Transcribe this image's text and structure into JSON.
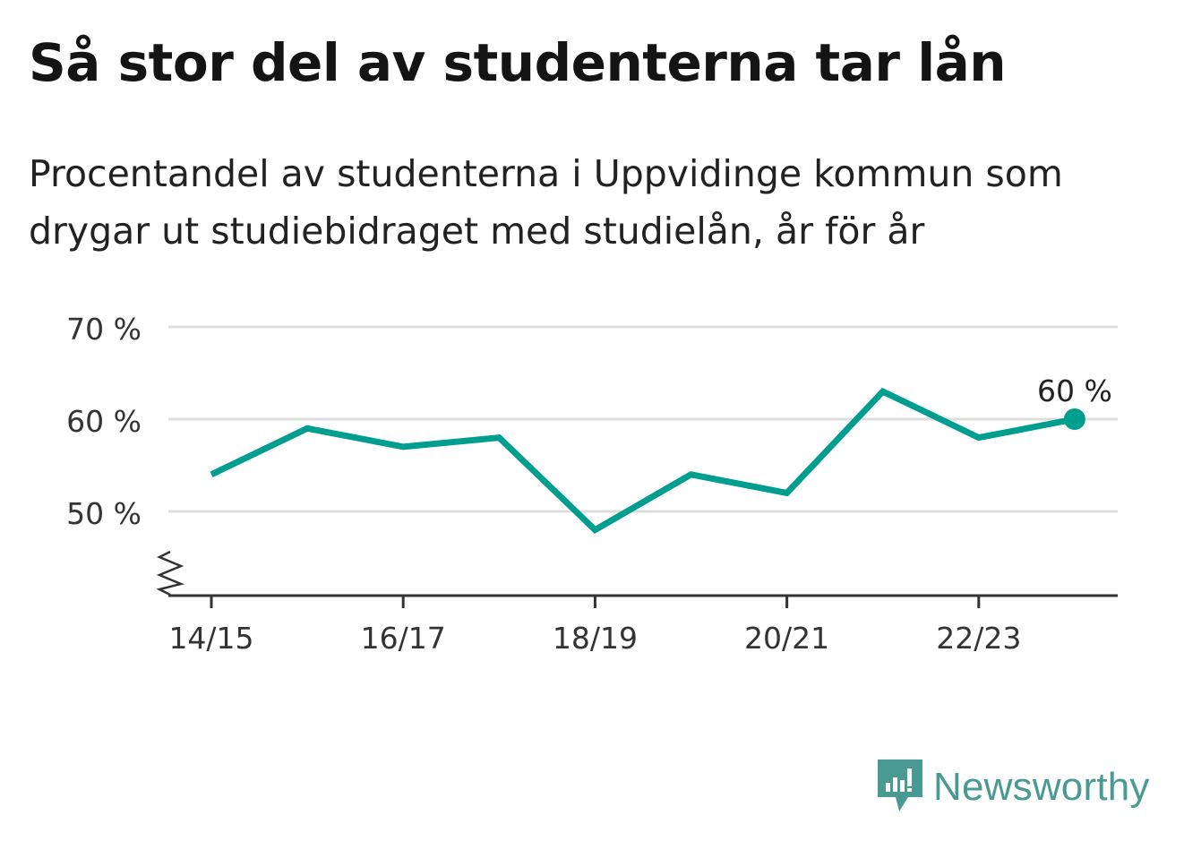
{
  "title": "Så stor del av studenterna tar lån",
  "subtitle": "Procentandel av studenterna i Uppvidinge kommun som drygar ut studiebidraget med studielån, år för år",
  "brand": {
    "name": "Newsworthy",
    "color": "#4a9a94",
    "icon": "newsworthy-logo-icon"
  },
  "colors": {
    "line": "#009e8f",
    "grid": "#dddddd",
    "axis": "#333333"
  },
  "chart_data": {
    "type": "line",
    "x": [
      "14/15",
      "15/16",
      "16/17",
      "17/18",
      "18/19",
      "19/20",
      "20/21",
      "21/22",
      "22/23",
      "23/24"
    ],
    "series": [
      {
        "values": [
          54,
          59,
          57,
          58,
          48,
          54,
          52,
          63,
          58,
          60
        ]
      }
    ],
    "x_tick_labels": [
      "14/15",
      "16/17",
      "18/19",
      "20/21",
      "22/23"
    ],
    "y_ticks": [
      50,
      60,
      70
    ],
    "y_tick_labels": [
      "50 %",
      "60 %",
      "70 %"
    ],
    "ylim": [
      41,
      70
    ],
    "y_axis_break": true,
    "grid": true,
    "end_label": "60 %"
  }
}
